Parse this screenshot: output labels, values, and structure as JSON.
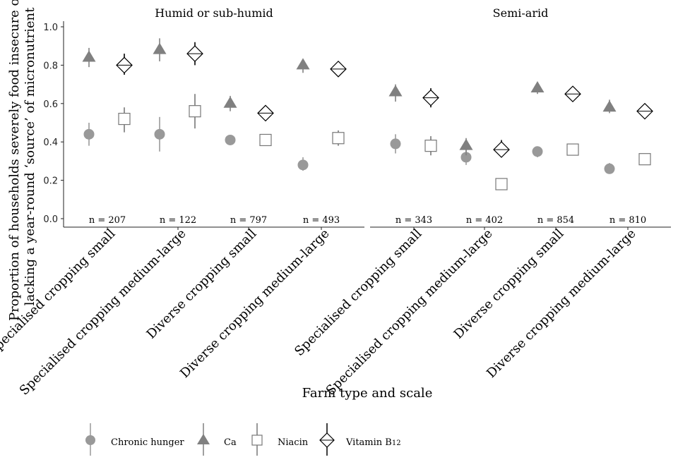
{
  "chart_data": {
    "type": "scatter",
    "ylabel_line1": "Proportion of households severely food insecure or",
    "ylabel_line2": "lacking a year-round ‘source’ of micronutrient",
    "xlabel": "Farm type and scale",
    "ylim": [
      0,
      1.0
    ],
    "yticks": [
      "0.0",
      "0.2",
      "0.4",
      "0.6",
      "0.8",
      "1.0"
    ],
    "grid": false,
    "legend_position": "bottom",
    "categories": [
      "Specialised cropping small",
      "Specialised cropping medium-large",
      "Diverse cropping small",
      "Diverse cropping medium-large"
    ],
    "series": [
      {
        "name": "Chronic hunger",
        "marker": "circle",
        "color": "#999999"
      },
      {
        "name": "Ca",
        "marker": "triangle",
        "color": "#808080"
      },
      {
        "name": "Niacin",
        "marker": "square-open",
        "color": "#777777"
      },
      {
        "name": "Vitamin B12",
        "marker": "diamond-cross",
        "color": "#000000"
      }
    ],
    "panels": [
      {
        "title": "Humid or sub-humid",
        "n": [
          "n = 207",
          "n = 122",
          "n = 797",
          "n = 493"
        ],
        "values": {
          "Chronic hunger": [
            [
              0.44,
              0.38,
              0.5
            ],
            [
              0.44,
              0.35,
              0.53
            ],
            [
              0.41,
              0.39,
              0.43
            ],
            [
              0.28,
              0.25,
              0.32
            ]
          ],
          "Ca": [
            [
              0.84,
              0.79,
              0.89
            ],
            [
              0.88,
              0.82,
              0.94
            ],
            [
              0.6,
              0.56,
              0.64
            ],
            [
              0.8,
              0.76,
              0.83
            ]
          ],
          "Niacin": [
            [
              0.52,
              0.45,
              0.58
            ],
            [
              0.56,
              0.47,
              0.65
            ],
            [
              0.41,
              0.38,
              0.44
            ],
            [
              0.42,
              0.38,
              0.46
            ]
          ],
          "Vitamin B12": [
            [
              0.8,
              0.75,
              0.86
            ],
            [
              0.86,
              0.8,
              0.92
            ],
            [
              0.55,
              0.52,
              0.59
            ],
            [
              0.78,
              0.74,
              0.81
            ]
          ]
        }
      },
      {
        "title": "Semi-arid",
        "n": [
          "n = 343",
          "n = 402",
          "n = 854",
          "n = 810"
        ],
        "values": {
          "Chronic hunger": [
            [
              0.39,
              0.34,
              0.44
            ],
            [
              0.32,
              0.28,
              0.36
            ],
            [
              0.35,
              0.32,
              0.37
            ],
            [
              0.26,
              0.24,
              0.29
            ]
          ],
          "Ca": [
            [
              0.66,
              0.61,
              0.7
            ],
            [
              0.38,
              0.33,
              0.42
            ],
            [
              0.68,
              0.65,
              0.71
            ],
            [
              0.58,
              0.55,
              0.62
            ]
          ],
          "Niacin": [
            [
              0.38,
              0.33,
              0.43
            ],
            [
              0.18,
              0.15,
              0.21
            ],
            [
              0.36,
              0.33,
              0.39
            ],
            [
              0.31,
              0.28,
              0.34
            ]
          ],
          "Vitamin B12": [
            [
              0.63,
              0.58,
              0.68
            ],
            [
              0.36,
              0.32,
              0.41
            ],
            [
              0.65,
              0.62,
              0.68
            ],
            [
              0.56,
              0.53,
              0.6
            ]
          ]
        }
      }
    ]
  },
  "legend": {
    "items": [
      {
        "label": "Chronic hunger"
      },
      {
        "label": "Ca"
      },
      {
        "label": "Niacin"
      },
      {
        "label": "Vitamin B12",
        "label_base": "Vitamin B",
        "label_sub": "12"
      }
    ]
  }
}
